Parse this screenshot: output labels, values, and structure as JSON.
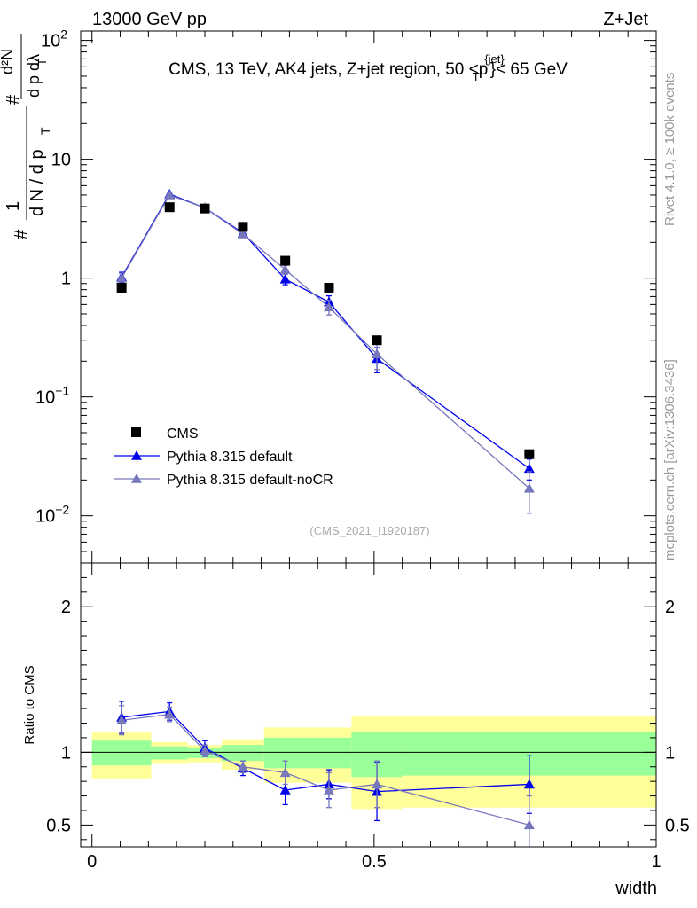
{
  "header": {
    "left": "13000 GeV pp",
    "right": "Z+Jet"
  },
  "side_labels": {
    "rivet": "Rivet 4.1.0, ≥ 100k events",
    "mcplots": "mcplots.cern.ch [arXiv:1306.3436]"
  },
  "y_axis_label": {
    "hash1": "#",
    "one": "1",
    "dN": "d N / d p",
    "sub_T1": "T",
    "hash2": "#",
    "d2N": "d²N",
    "dpdl": "d p  dλ",
    "sub_T2": "T"
  },
  "chart_data": [
    {
      "type": "scatter",
      "panel": "main",
      "title": "CMS, 13 TeV, AK4 jets, Z+jet region, 50 <",
      "title_p": "p",
      "title_sub": "T",
      "title_sup": "{jet}",
      "title_end": "}< 65 GeV",
      "watermark": "(CMS_2021_I1920187)",
      "yscale": "log",
      "ylim": [
        0.004,
        120
      ],
      "xlim": [
        -0.02,
        1.0
      ],
      "y_ticks": [
        {
          "value": 100,
          "base": "10",
          "exp": "2"
        },
        {
          "value": 10,
          "base": "10",
          "exp": ""
        },
        {
          "value": 1,
          "base": "1",
          "exp": ""
        },
        {
          "value": 0.1,
          "base": "10",
          "exp": "−1"
        },
        {
          "value": 0.01,
          "base": "10",
          "exp": "−2"
        }
      ],
      "legend": {
        "placement": "lower-left",
        "entries": [
          "CMS",
          "Pythia 8.315 default",
          "Pythia 8.315 default-noCR"
        ]
      },
      "series": [
        {
          "name": "CMS",
          "color": "#000000",
          "marker": "square",
          "x": [
            0.0525,
            0.1375,
            0.2,
            0.2675,
            0.3425,
            0.42,
            0.505,
            0.775
          ],
          "y": [
            0.83,
            3.95,
            3.85,
            2.7,
            1.4,
            0.83,
            0.3,
            0.033
          ]
        },
        {
          "name": "Pythia 8.315 default",
          "color": "#0000ee",
          "marker": "triangle",
          "x": [
            0.0525,
            0.1375,
            0.2,
            0.2675,
            0.3425,
            0.42,
            0.505,
            0.775
          ],
          "y": [
            1.02,
            5.1,
            3.9,
            2.4,
            0.98,
            0.63,
            0.21,
            0.025
          ],
          "err": [
            0.1,
            0.2,
            0.15,
            0.1,
            0.1,
            0.08,
            0.05,
            0.005
          ]
        },
        {
          "name": "Pythia 8.315 default-noCR",
          "color": "#7777bb",
          "marker": "triangle",
          "x": [
            0.0525,
            0.1375,
            0.2,
            0.2675,
            0.3425,
            0.42,
            0.505,
            0.775
          ],
          "y": [
            1.0,
            5.0,
            3.9,
            2.35,
            1.18,
            0.57,
            0.23,
            0.017
          ],
          "err": [
            0.1,
            0.2,
            0.15,
            0.1,
            0.1,
            0.08,
            0.06,
            0.0065
          ]
        }
      ]
    },
    {
      "type": "scatter",
      "panel": "ratio",
      "ylabel": "Ratio to CMS",
      "xlabel": "width",
      "yscale": "linear",
      "ylim": [
        0.35,
        2.3
      ],
      "xlim": [
        -0.02,
        1.0
      ],
      "y_ticks": [
        {
          "value": 2,
          "label": "2"
        },
        {
          "value": 1,
          "label": "1"
        },
        {
          "value": 0.5,
          "label": "0.5"
        }
      ],
      "x_ticks": [
        {
          "value": 0,
          "label": "0"
        },
        {
          "value": 0.5,
          "label": "0.5"
        },
        {
          "value": 1,
          "label": "1"
        }
      ],
      "bands": [
        {
          "x0": 0.0,
          "x1": 0.105,
          "yellow": [
            0.82,
            1.14
          ],
          "green": [
            0.91,
            1.08
          ]
        },
        {
          "x0": 0.105,
          "x1": 0.17,
          "yellow": [
            0.92,
            1.07
          ],
          "green": [
            0.95,
            1.04
          ]
        },
        {
          "x0": 0.17,
          "x1": 0.23,
          "yellow": [
            0.93,
            1.05
          ],
          "green": [
            0.96,
            1.03
          ]
        },
        {
          "x0": 0.23,
          "x1": 0.305,
          "yellow": [
            0.88,
            1.09
          ],
          "green": [
            0.94,
            1.05
          ]
        },
        {
          "x0": 0.305,
          "x1": 0.38,
          "yellow": [
            0.79,
            1.17
          ],
          "green": [
            0.89,
            1.1
          ]
        },
        {
          "x0": 0.38,
          "x1": 0.46,
          "yellow": [
            0.79,
            1.17
          ],
          "green": [
            0.89,
            1.1
          ]
        },
        {
          "x0": 0.46,
          "x1": 0.55,
          "yellow": [
            0.61,
            1.25
          ],
          "green": [
            0.83,
            1.14
          ]
        },
        {
          "x0": 0.55,
          "x1": 1.0,
          "yellow": [
            0.62,
            1.25
          ],
          "green": [
            0.84,
            1.14
          ]
        }
      ],
      "series": [
        {
          "name": "Pythia 8.315 default",
          "color": "#0000ee",
          "x": [
            0.0525,
            0.1375,
            0.2,
            0.2675,
            0.3425,
            0.42,
            0.505,
            0.775
          ],
          "y": [
            1.24,
            1.28,
            1.03,
            0.89,
            0.74,
            0.78,
            0.73,
            0.78
          ],
          "err": [
            0.11,
            0.06,
            0.05,
            0.05,
            0.1,
            0.1,
            0.2,
            0.2
          ]
        },
        {
          "name": "Pythia 8.315 default-noCR",
          "color": "#7777bb",
          "x": [
            0.0525,
            0.1375,
            0.2,
            0.2675,
            0.3425,
            0.42,
            0.505,
            0.775
          ],
          "y": [
            1.22,
            1.26,
            1.01,
            0.9,
            0.86,
            0.74,
            0.78,
            0.5
          ],
          "err": [
            0.1,
            0.05,
            0.04,
            0.04,
            0.08,
            0.12,
            0.16,
            0.2
          ]
        }
      ]
    }
  ]
}
